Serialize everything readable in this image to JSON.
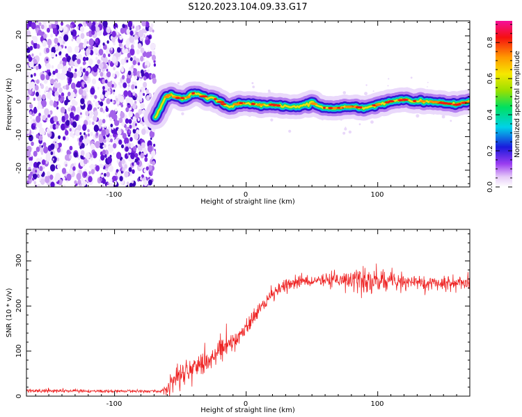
{
  "figure_title": "S120.2023.104.09.33.G17",
  "colors": {
    "snr_line": "#ee2222"
  },
  "chart_data": [
    {
      "type": "heatmap",
      "xlabel": "Height of straight line (km)",
      "ylabel": "Frequency (Hz)",
      "xlim": [
        -167,
        170
      ],
      "ylim": [
        -25,
        24.5
      ],
      "x_ticks": [
        "-100",
        "0",
        "100"
      ],
      "y_ticks": [
        "-20",
        "-10",
        "0",
        "10",
        "20"
      ],
      "noise_region_x": [
        -167,
        -69
      ],
      "signal_ridge": {
        "x": [
          -69,
          -66,
          -62,
          -58,
          -52,
          -45,
          -40,
          -35,
          -30,
          -25,
          -20,
          -15,
          -10,
          -5,
          0,
          10,
          20,
          30,
          40,
          50,
          60,
          70,
          80,
          90,
          100,
          110,
          120,
          130,
          140,
          150,
          160,
          170
        ],
        "freq": [
          -4,
          -2,
          1.5,
          2.5,
          1.5,
          1.5,
          3,
          2.5,
          1.5,
          1.5,
          0.5,
          -1,
          -0.8,
          0,
          0,
          -0.5,
          -0.5,
          -1,
          -1,
          0,
          -1.5,
          -1.5,
          -1,
          -1.5,
          -0.5,
          0.5,
          1,
          0.5,
          0.5,
          0,
          -0.5,
          0.5
        ]
      },
      "colorbar": {
        "label": "Normalized spectral amplitude",
        "range": [
          0,
          0.92
        ],
        "ticks": [
          "0.0",
          "0.2",
          "0.4",
          "0.6",
          "0.8"
        ]
      }
    },
    {
      "type": "line",
      "xlabel": "Height of straight line (km)",
      "ylabel": "SNR (10 * v/v)",
      "xlim": [
        -167,
        170
      ],
      "ylim": [
        0,
        370
      ],
      "x_ticks": [
        "-100",
        "0",
        "100"
      ],
      "y_ticks": [
        "0",
        "100",
        "200",
        "300"
      ],
      "series": [
        {
          "x": [
            -167,
            -150,
            -120,
            -90,
            -65,
            -60,
            -55,
            -50,
            -45,
            -40,
            -35,
            -30,
            -25,
            -20,
            -15,
            -10,
            -5,
            0,
            5,
            10,
            15,
            20,
            25,
            30,
            40,
            50,
            60,
            70,
            80,
            90,
            95,
            100,
            110,
            120,
            130,
            140,
            150,
            160,
            170
          ],
          "mean": [
            12,
            12,
            11,
            11,
            11,
            18,
            35,
            50,
            60,
            65,
            75,
            85,
            90,
            100,
            110,
            120,
            130,
            150,
            175,
            195,
            210,
            225,
            235,
            245,
            255,
            255,
            258,
            258,
            255,
            250,
            250,
            255,
            255,
            252,
            252,
            250,
            250,
            250,
            252
          ],
          "spread": [
            6,
            6,
            5,
            5,
            5,
            25,
            45,
            45,
            40,
            40,
            35,
            40,
            35,
            40,
            45,
            45,
            45,
            35,
            30,
            25,
            22,
            20,
            20,
            20,
            20,
            20,
            22,
            28,
            35,
            75,
            45,
            35,
            28,
            25,
            25,
            25,
            25,
            25,
            25
          ]
        }
      ]
    }
  ]
}
